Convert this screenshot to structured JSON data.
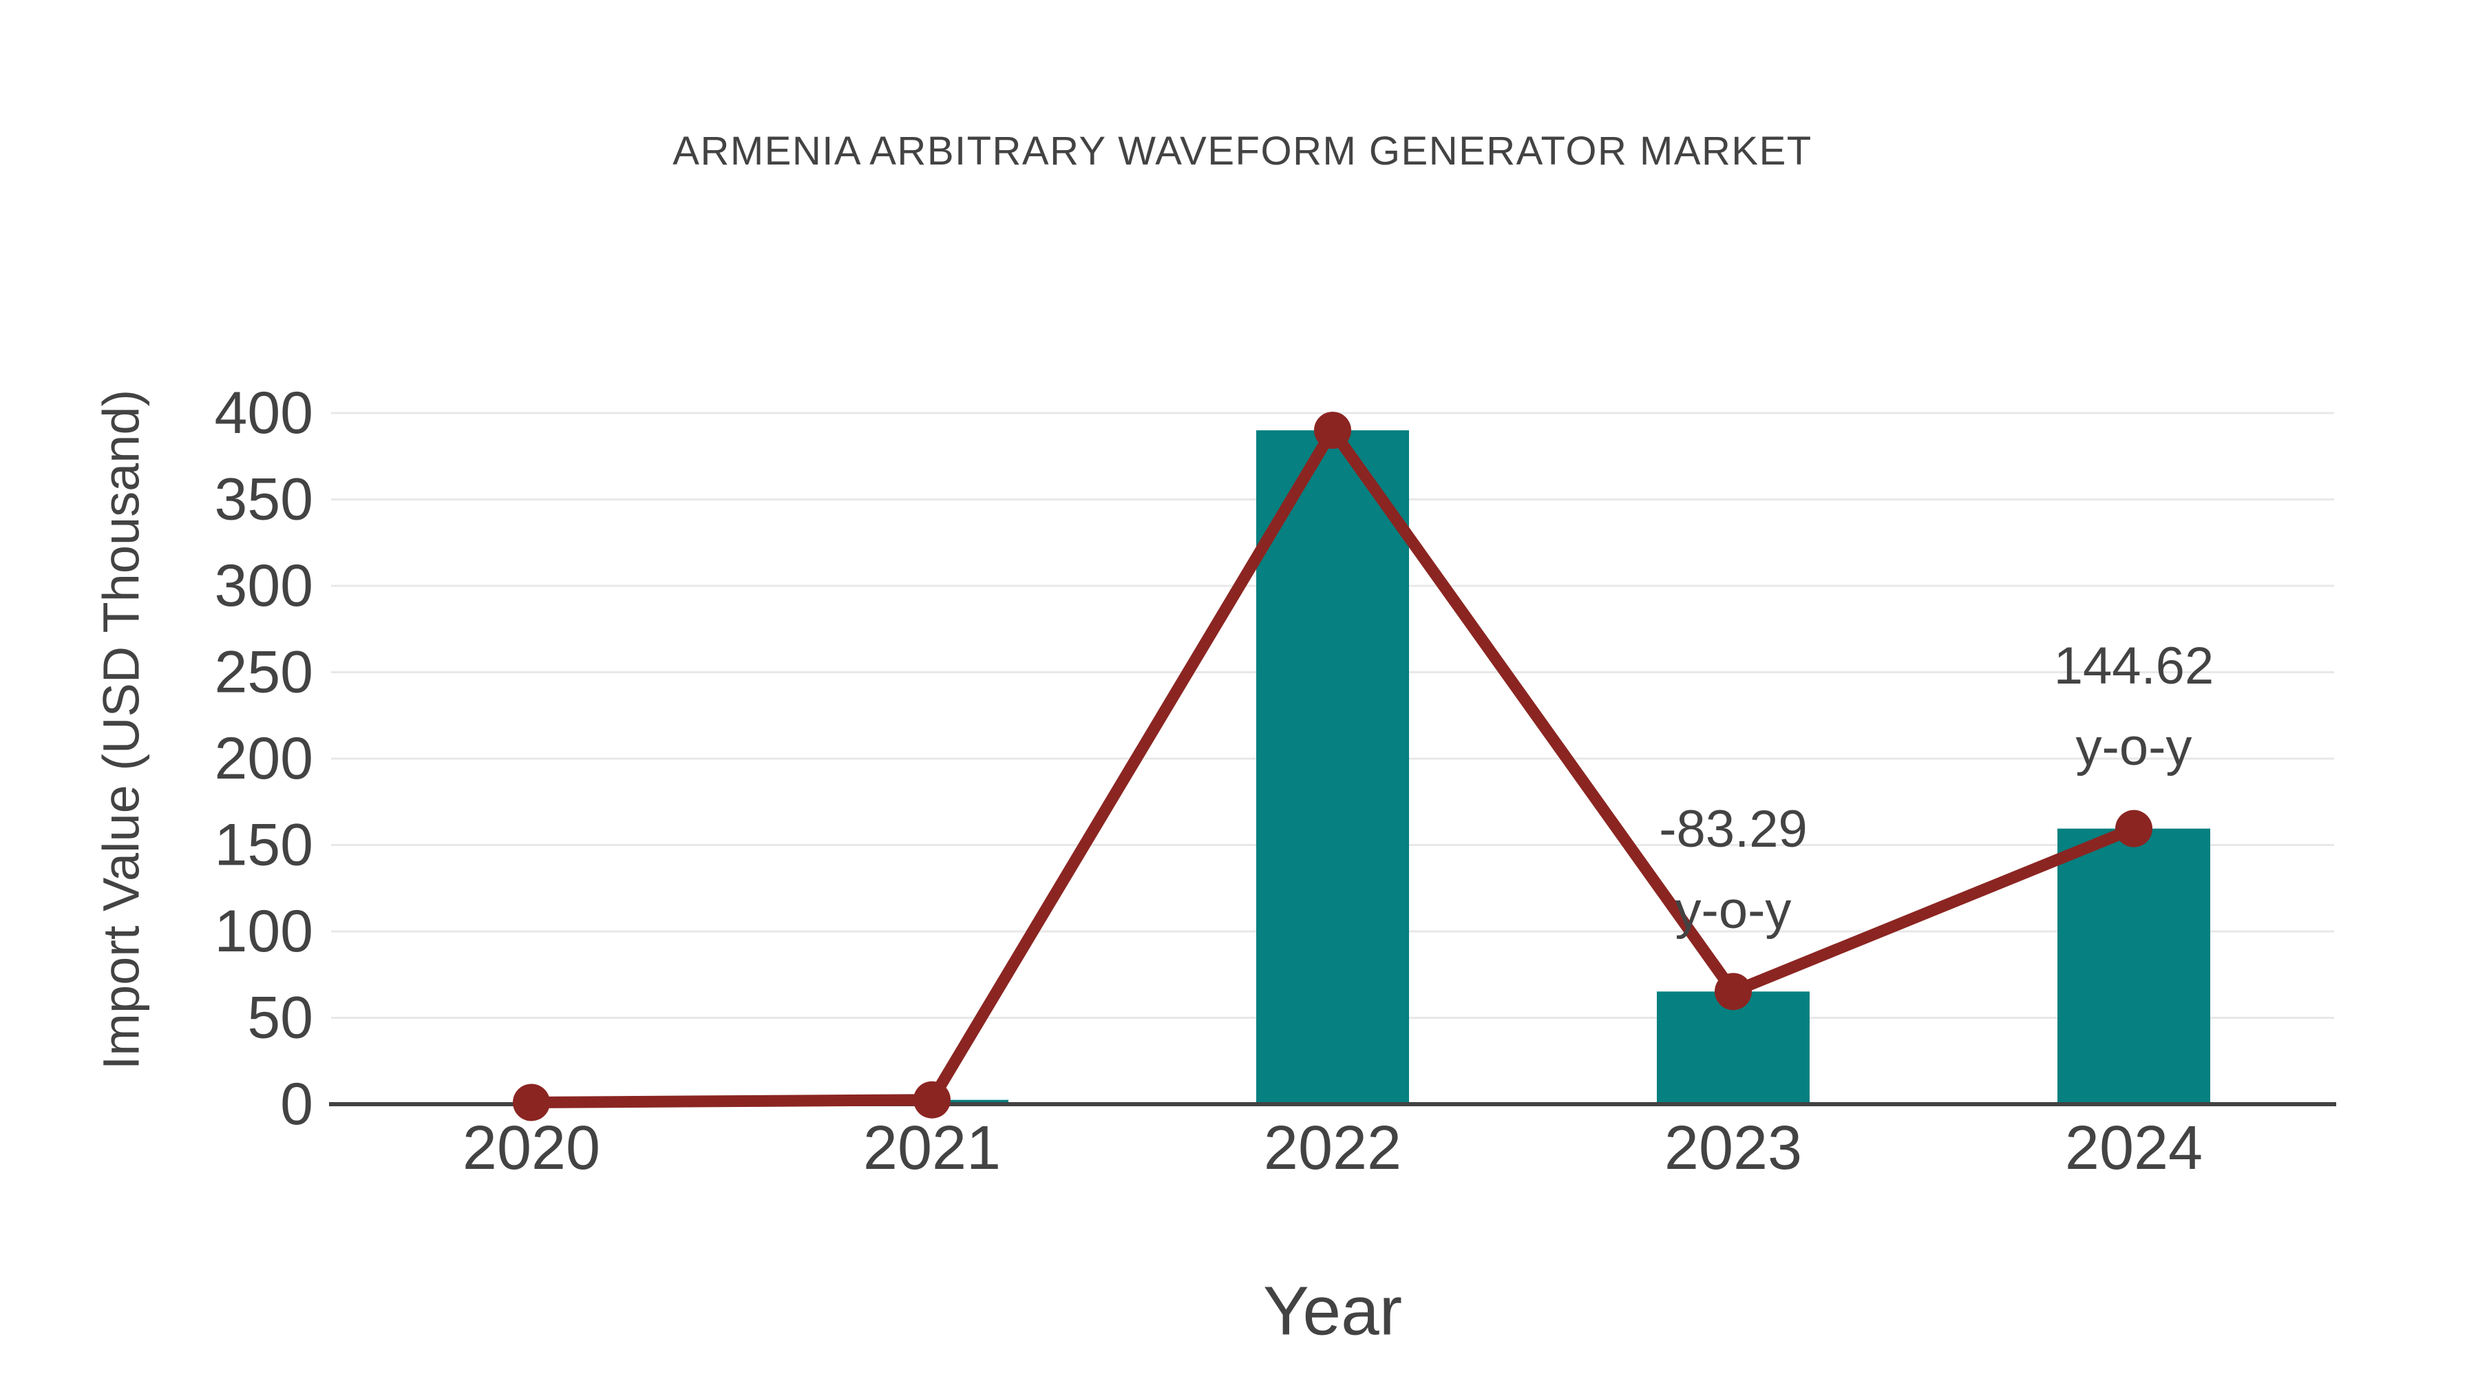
{
  "chart_data": {
    "type": "bar",
    "categories": [
      "2020",
      "2021",
      "2022",
      "2023",
      "2024"
    ],
    "series": [
      {
        "name": "Import Value bars",
        "type": "bar",
        "values": [
          1,
          2.5,
          390,
          65.2,
          159.5
        ]
      },
      {
        "name": "Import Value trend line",
        "type": "line",
        "values": [
          1,
          2.5,
          390,
          65.2,
          159.5
        ]
      }
    ],
    "title": "ARMENIA ARBITRARY WAVEFORM GENERATOR MARKET",
    "xlabel": "Year",
    "ylabel": "Import Value (USD Thousand)",
    "ylim": [
      0,
      400
    ],
    "yticks": [
      0,
      50,
      100,
      150,
      200,
      250,
      300,
      350,
      400
    ],
    "grid": "horizontal",
    "legend_position": "none",
    "annotations": [
      {
        "category": "2023",
        "lines": [
          "-83.29",
          "y-o-y"
        ]
      },
      {
        "category": "2024",
        "lines": [
          "144.62",
          "y-o-y"
        ]
      }
    ],
    "colors": {
      "bar": "#068080",
      "line": "#8b2522",
      "marker": "#8b2522",
      "text": "#434343",
      "grid": "#e8e8e8",
      "axis": "#424242",
      "background": "#ffffff"
    }
  }
}
